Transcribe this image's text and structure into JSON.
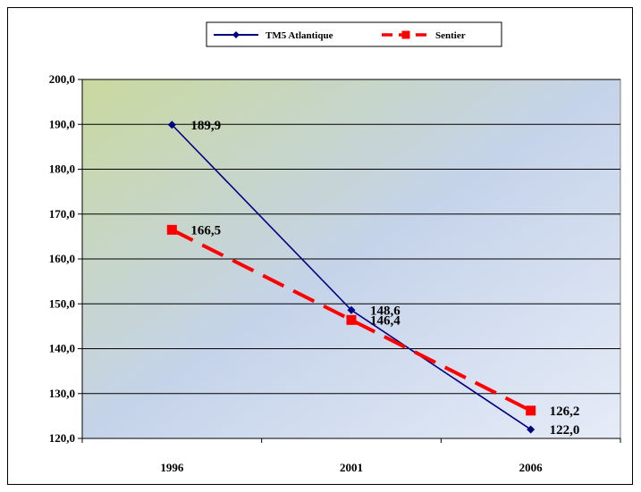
{
  "chart_data": {
    "type": "line",
    "categories": [
      "1996",
      "2001",
      "2006"
    ],
    "ylim": [
      120,
      200
    ],
    "yticks": [
      "120,0",
      "130,0",
      "140,0",
      "150,0",
      "160,0",
      "170,0",
      "180,0",
      "190,0",
      "200,0"
    ],
    "grid": true,
    "legend_position": "top",
    "series": [
      {
        "name": "TM5 Atlantique",
        "values": [
          189.9,
          148.6,
          122.0
        ],
        "labels": [
          "189,9",
          "148,6",
          "122,0"
        ],
        "color": "#000080",
        "style": "solid",
        "marker": "diamond"
      },
      {
        "name": "Sentier",
        "values": [
          166.5,
          146.4,
          126.2
        ],
        "labels": [
          "166,5",
          "146,4",
          "126,2"
        ],
        "color": "#ff0000",
        "style": "dashed",
        "marker": "square"
      }
    ],
    "plot_background": [
      "#c9d99e",
      "#c5d3ea",
      "#e6ecf7"
    ]
  }
}
